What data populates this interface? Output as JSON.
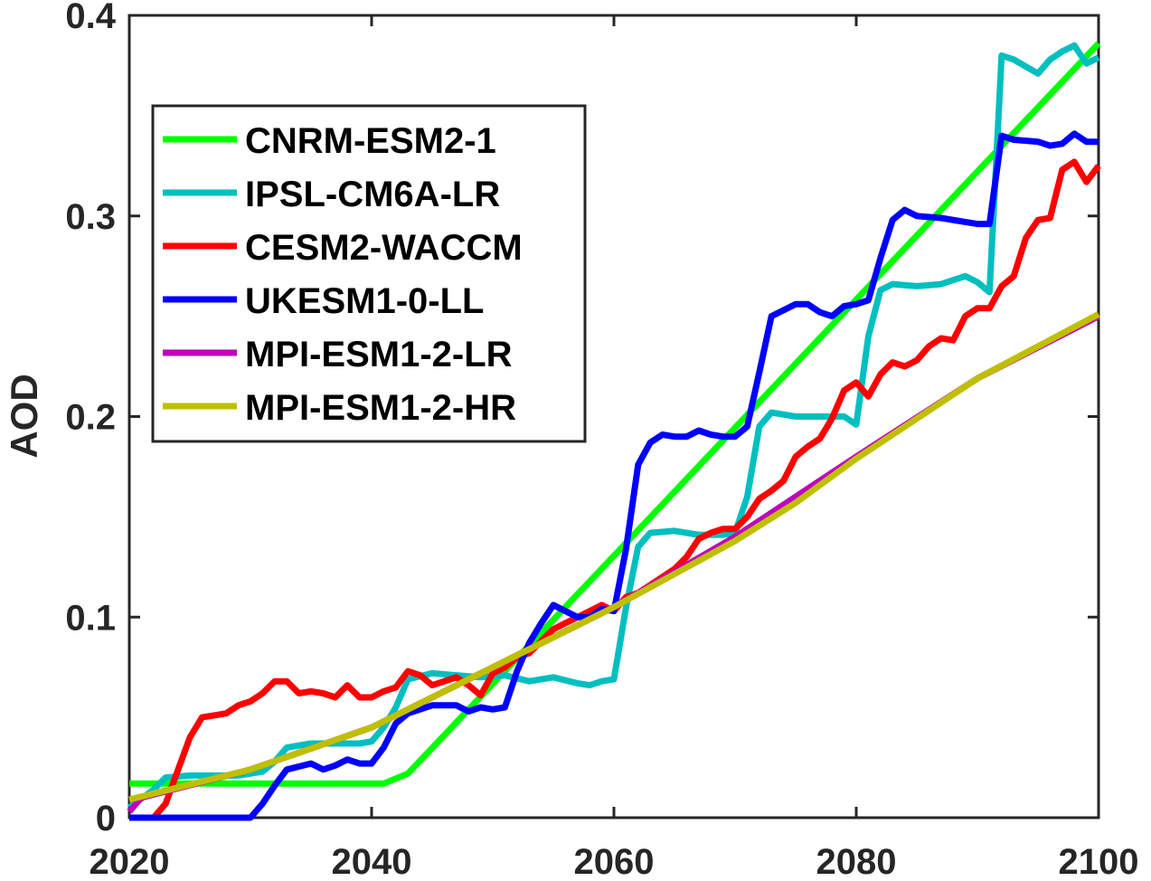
{
  "chart_data": {
    "type": "line",
    "title": "",
    "xlabel": "",
    "ylabel": "AOD",
    "xlim": [
      2020,
      2100
    ],
    "ylim": [
      0,
      0.4
    ],
    "x_ticks": [
      "2020",
      "2040",
      "2060",
      "2080",
      "2100"
    ],
    "y_ticks": [
      "0",
      "0.1",
      "0.2",
      "0.3",
      "0.4"
    ],
    "grid": false,
    "legend_position": "upper-left",
    "series": [
      {
        "name": "CNRM-ESM2-1",
        "color": "#00ff00",
        "x": [
          2020,
          2041,
          2043,
          2100
        ],
        "y": [
          0.017,
          0.017,
          0.022,
          0.386
        ]
      },
      {
        "name": "IPSL-CM6A-LR",
        "color": "#00bfbf",
        "x": [
          2020,
          2022,
          2023,
          2025,
          2027,
          2029,
          2031,
          2032,
          2033,
          2035,
          2037,
          2039,
          2040,
          2041,
          2042,
          2043,
          2045,
          2047,
          2049,
          2051,
          2053,
          2055,
          2057,
          2058,
          2059,
          2060,
          2061,
          2062,
          2063,
          2065,
          2067,
          2069,
          2070,
          2071,
          2072,
          2073,
          2075,
          2077,
          2079,
          2080,
          2081,
          2082,
          2083,
          2085,
          2087,
          2089,
          2090,
          2091,
          2092,
          2093,
          2095,
          2096,
          2097,
          2098,
          2099,
          2100
        ],
        "y": [
          0.005,
          0.014,
          0.02,
          0.021,
          0.021,
          0.021,
          0.023,
          0.028,
          0.035,
          0.037,
          0.037,
          0.037,
          0.038,
          0.045,
          0.055,
          0.069,
          0.072,
          0.071,
          0.07,
          0.071,
          0.068,
          0.07,
          0.067,
          0.066,
          0.068,
          0.069,
          0.105,
          0.135,
          0.142,
          0.143,
          0.141,
          0.141,
          0.142,
          0.16,
          0.195,
          0.202,
          0.2,
          0.2,
          0.2,
          0.196,
          0.24,
          0.263,
          0.266,
          0.265,
          0.266,
          0.27,
          0.267,
          0.262,
          0.38,
          0.378,
          0.371,
          0.378,
          0.382,
          0.385,
          0.376,
          0.379
        ]
      },
      {
        "name": "CESM2-WACCM",
        "color": "#ff0000",
        "x": [
          2020,
          2022,
          2023,
          2025,
          2026,
          2027,
          2028,
          2029,
          2030,
          2031,
          2032,
          2033,
          2034,
          2035,
          2036,
          2037,
          2038,
          2039,
          2040,
          2041,
          2042,
          2043,
          2044,
          2045,
          2046,
          2047,
          2048,
          2049,
          2050,
          2051,
          2052,
          2053,
          2054,
          2055,
          2056,
          2057,
          2058,
          2059,
          2060,
          2061,
          2062,
          2063,
          2064,
          2065,
          2066,
          2067,
          2068,
          2069,
          2070,
          2071,
          2072,
          2073,
          2074,
          2075,
          2076,
          2077,
          2078,
          2079,
          2080,
          2081,
          2082,
          2083,
          2084,
          2085,
          2086,
          2087,
          2088,
          2089,
          2090,
          2091,
          2092,
          2093,
          2094,
          2095,
          2096,
          2097,
          2098,
          2099,
          2100
        ],
        "y": [
          0.0,
          0.0,
          0.007,
          0.04,
          0.05,
          0.051,
          0.052,
          0.056,
          0.058,
          0.062,
          0.068,
          0.068,
          0.062,
          0.063,
          0.062,
          0.06,
          0.066,
          0.06,
          0.06,
          0.063,
          0.065,
          0.073,
          0.071,
          0.066,
          0.068,
          0.07,
          0.066,
          0.061,
          0.072,
          0.075,
          0.08,
          0.082,
          0.088,
          0.094,
          0.097,
          0.1,
          0.103,
          0.106,
          0.103,
          0.11,
          0.112,
          0.116,
          0.12,
          0.124,
          0.13,
          0.139,
          0.142,
          0.144,
          0.144,
          0.15,
          0.159,
          0.163,
          0.168,
          0.18,
          0.185,
          0.189,
          0.199,
          0.213,
          0.217,
          0.21,
          0.221,
          0.227,
          0.225,
          0.228,
          0.235,
          0.239,
          0.238,
          0.25,
          0.254,
          0.254,
          0.265,
          0.27,
          0.289,
          0.298,
          0.299,
          0.323,
          0.327,
          0.317,
          0.325
        ]
      },
      {
        "name": "UKESM1-0-LL",
        "color": "#0000ff",
        "x": [
          2020,
          2030,
          2031,
          2032,
          2033,
          2035,
          2036,
          2037,
          2038,
          2039,
          2040,
          2041,
          2042,
          2043,
          2045,
          2047,
          2048,
          2049,
          2050,
          2051,
          2052,
          2053,
          2054,
          2055,
          2057,
          2058,
          2059,
          2060,
          2061,
          2062,
          2063,
          2064,
          2065,
          2066,
          2067,
          2068,
          2069,
          2070,
          2071,
          2072,
          2073,
          2075,
          2076,
          2077,
          2078,
          2079,
          2080,
          2081,
          2082,
          2083,
          2084,
          2085,
          2087,
          2089,
          2090,
          2091,
          2092,
          2093,
          2095,
          2096,
          2097,
          2098,
          2099,
          2100
        ],
        "y": [
          0.0,
          0.0,
          0.007,
          0.016,
          0.024,
          0.027,
          0.024,
          0.026,
          0.029,
          0.027,
          0.027,
          0.035,
          0.047,
          0.052,
          0.056,
          0.056,
          0.053,
          0.055,
          0.054,
          0.055,
          0.073,
          0.087,
          0.097,
          0.106,
          0.1,
          0.1,
          0.104,
          0.103,
          0.134,
          0.176,
          0.187,
          0.191,
          0.19,
          0.19,
          0.193,
          0.191,
          0.19,
          0.19,
          0.195,
          0.222,
          0.25,
          0.256,
          0.256,
          0.252,
          0.25,
          0.255,
          0.256,
          0.258,
          0.279,
          0.298,
          0.303,
          0.3,
          0.299,
          0.297,
          0.296,
          0.296,
          0.34,
          0.338,
          0.337,
          0.335,
          0.336,
          0.341,
          0.337,
          0.337
        ]
      },
      {
        "name": "MPI-ESM1-2-LR",
        "color": "#bf00bf",
        "x": [
          2020,
          2021,
          2030,
          2040,
          2050,
          2060,
          2070,
          2080,
          2090,
          2100
        ],
        "y": [
          0.003,
          0.01,
          0.024,
          0.045,
          0.075,
          0.105,
          0.14,
          0.18,
          0.219,
          0.25
        ]
      },
      {
        "name": "MPI-ESM1-2-HR",
        "color": "#bfbf00",
        "x": [
          2020,
          2030,
          2040,
          2050,
          2060,
          2070,
          2075,
          2080,
          2090,
          2100
        ],
        "y": [
          0.009,
          0.024,
          0.045,
          0.075,
          0.105,
          0.138,
          0.157,
          0.179,
          0.219,
          0.251
        ]
      }
    ]
  }
}
